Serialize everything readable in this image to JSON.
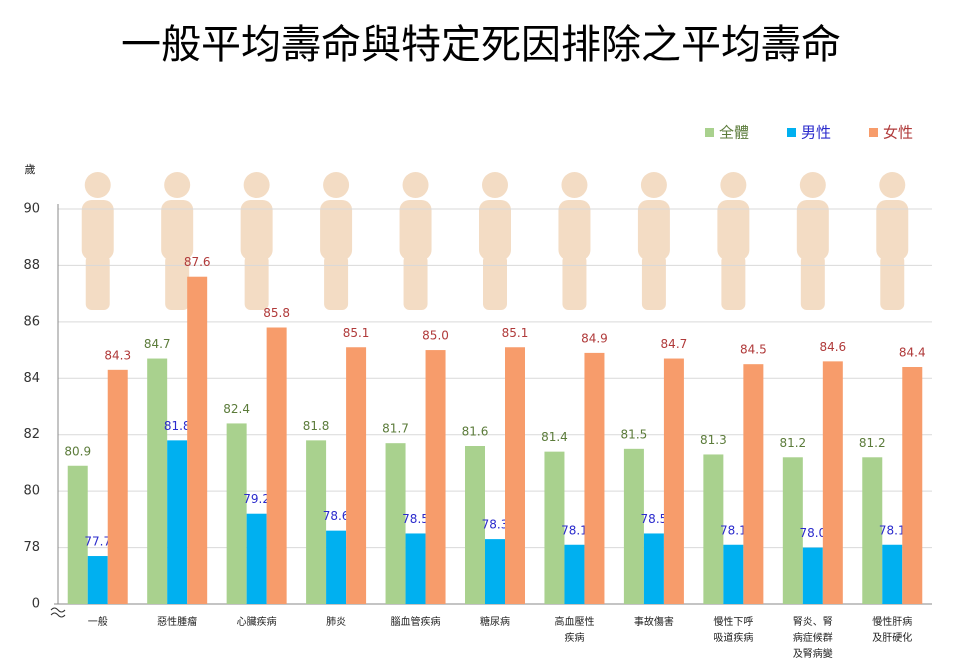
{
  "chart_data": {
    "type": "bar",
    "title": "一般平均壽命與特定死因排除之平均壽命",
    "y_label": "歲",
    "categories": [
      "一般",
      "惡性腫瘤",
      "心臟疾病",
      "肺炎",
      "腦血管疾病",
      "糖尿病",
      "高血壓性疾病",
      "事故傷害",
      "慢性下呼吸道疾病",
      "腎炎、腎病症候群及腎病變",
      "慢性肝病及肝硬化"
    ],
    "series": [
      {
        "name": "全體",
        "color": "#a9d18e",
        "label_color": "#5b7b3a",
        "values": [
          80.9,
          84.7,
          82.4,
          81.8,
          81.7,
          81.6,
          81.4,
          81.5,
          81.3,
          81.2,
          81.2
        ],
        "value_labels": [
          "80.9",
          "84.7",
          "82.4",
          "81.8",
          "81.7",
          "81.6",
          "81.4",
          "81.5",
          "81.3",
          "81.2",
          "81.2"
        ]
      },
      {
        "name": "男性",
        "color": "#00b0f0",
        "label_color": "#2b2bcc",
        "values": [
          77.7,
          81.8,
          79.2,
          78.6,
          78.5,
          78.3,
          78.1,
          78.5,
          78.1,
          78.0,
          78.1
        ],
        "value_labels": [
          "77.7",
          "81.8",
          "79.2",
          "78.6",
          "78.5",
          "78.3",
          "78.1",
          "78.5",
          "78.1",
          "78.0",
          "78.1"
        ]
      },
      {
        "name": "女性",
        "color": "#f79c6b",
        "label_color": "#b03a3a",
        "values": [
          84.3,
          87.6,
          85.8,
          85.1,
          85.0,
          85.1,
          84.9,
          84.7,
          84.5,
          84.6,
          84.4
        ],
        "value_labels": [
          "84.3",
          "87.6",
          "85.8",
          "85.1",
          "85.0",
          "85.1",
          "84.9",
          "84.7",
          "84.5",
          "84.6",
          "84.4"
        ]
      }
    ],
    "ylim": [
      0,
      90
    ],
    "ybreak": [
      0,
      76
    ],
    "yticks": [
      0,
      78,
      80,
      82,
      84,
      86,
      88,
      90
    ],
    "grid": true,
    "legend": "top-right"
  }
}
